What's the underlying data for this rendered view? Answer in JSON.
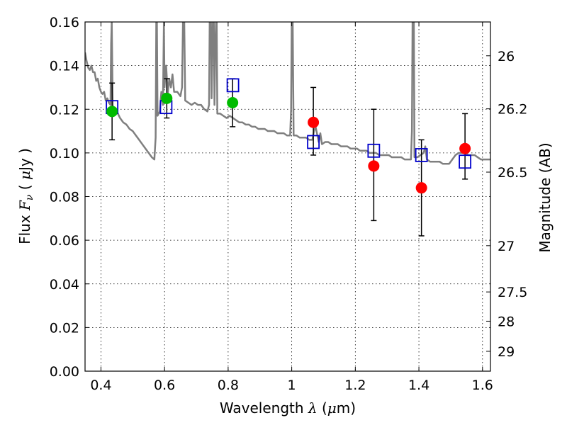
{
  "chart_data": {
    "type": "scatter",
    "title": "",
    "xlabel": {
      "text": "Wavelength",
      "symbol": "λ",
      "unit_prefix": "(",
      "unit_mu": "μ",
      "unit_suffix": "m)"
    },
    "ylabel": {
      "text": "Flux",
      "symbol": "F",
      "subscript": "ν",
      "unit_open": "(",
      "unit_mu": "μ",
      "unit_rest": "Jy",
      "unit_close": ")"
    },
    "y2label": "Magnitude (AB)",
    "xlim": [
      0.35,
      1.625
    ],
    "ylim": [
      0.0,
      0.16
    ],
    "grid": true,
    "x_ticks": [
      "0.4",
      "0.6",
      "0.8",
      "1",
      "1.2",
      "1.4",
      "1.6"
    ],
    "x_tick_values": [
      0.4,
      0.6,
      0.8,
      1.0,
      1.2,
      1.4,
      1.6
    ],
    "y_ticks": [
      "0.00",
      "0.02",
      "0.04",
      "0.06",
      "0.08",
      "0.10",
      "0.12",
      "0.14",
      "0.16"
    ],
    "y_tick_values": [
      0.0,
      0.02,
      0.04,
      0.06,
      0.08,
      0.1,
      0.12,
      0.14,
      0.16
    ],
    "mag_ticks": [
      {
        "label": "26",
        "flux": 0.1445
      },
      {
        "label": "26.2",
        "flux": 0.1202
      },
      {
        "label": "26.5",
        "flux": 0.0912
      },
      {
        "label": "27",
        "flux": 0.0575
      },
      {
        "label": "27.5",
        "flux": 0.0363
      },
      {
        "label": "28",
        "flux": 0.0229
      },
      {
        "label": "29",
        "flux": 0.0091
      }
    ],
    "colors": {
      "model": "#7f7f7f",
      "green": "#00bb00",
      "red": "#ff0000",
      "box": "#0000cc",
      "errorbar": "#000000"
    },
    "series": [
      {
        "kind": "model-spectrum",
        "points": [
          [
            0.35,
            0.146
          ],
          [
            0.355,
            0.142
          ],
          [
            0.36,
            0.139
          ],
          [
            0.365,
            0.138
          ],
          [
            0.37,
            0.14
          ],
          [
            0.375,
            0.137
          ],
          [
            0.38,
            0.137
          ],
          [
            0.385,
            0.133
          ],
          [
            0.39,
            0.134
          ],
          [
            0.395,
            0.13
          ],
          [
            0.4,
            0.128
          ],
          [
            0.405,
            0.127
          ],
          [
            0.41,
            0.128
          ],
          [
            0.415,
            0.124
          ],
          [
            0.42,
            0.125
          ],
          [
            0.425,
            0.123
          ],
          [
            0.43,
            0.122
          ],
          [
            0.432,
            0.15
          ],
          [
            0.434,
            0.16
          ],
          [
            0.437,
            0.122
          ],
          [
            0.44,
            0.12
          ],
          [
            0.45,
            0.119
          ],
          [
            0.46,
            0.116
          ],
          [
            0.47,
            0.114
          ],
          [
            0.48,
            0.113
          ],
          [
            0.49,
            0.111
          ],
          [
            0.5,
            0.11
          ],
          [
            0.51,
            0.108
          ],
          [
            0.52,
            0.106
          ],
          [
            0.53,
            0.104
          ],
          [
            0.54,
            0.102
          ],
          [
            0.55,
            0.1
          ],
          [
            0.56,
            0.098
          ],
          [
            0.568,
            0.097
          ],
          [
            0.572,
            0.107
          ],
          [
            0.574,
            0.16
          ],
          [
            0.576,
            0.16
          ],
          [
            0.578,
            0.117
          ],
          [
            0.585,
            0.119
          ],
          [
            0.59,
            0.128
          ],
          [
            0.595,
            0.122
          ],
          [
            0.598,
            0.16
          ],
          [
            0.6,
            0.13
          ],
          [
            0.605,
            0.14
          ],
          [
            0.61,
            0.127
          ],
          [
            0.615,
            0.134
          ],
          [
            0.62,
            0.13
          ],
          [
            0.625,
            0.136
          ],
          [
            0.63,
            0.128
          ],
          [
            0.64,
            0.128
          ],
          [
            0.65,
            0.126
          ],
          [
            0.655,
            0.13
          ],
          [
            0.658,
            0.16
          ],
          [
            0.662,
            0.16
          ],
          [
            0.665,
            0.124
          ],
          [
            0.675,
            0.123
          ],
          [
            0.685,
            0.122
          ],
          [
            0.695,
            0.123
          ],
          [
            0.705,
            0.122
          ],
          [
            0.715,
            0.122
          ],
          [
            0.725,
            0.12
          ],
          [
            0.735,
            0.119
          ],
          [
            0.74,
            0.122
          ],
          [
            0.742,
            0.16
          ],
          [
            0.746,
            0.16
          ],
          [
            0.748,
            0.125
          ],
          [
            0.752,
            0.16
          ],
          [
            0.755,
            0.16
          ],
          [
            0.757,
            0.122
          ],
          [
            0.76,
            0.15
          ],
          [
            0.762,
            0.16
          ],
          [
            0.764,
            0.16
          ],
          [
            0.766,
            0.118
          ],
          [
            0.775,
            0.118
          ],
          [
            0.785,
            0.117
          ],
          [
            0.795,
            0.116
          ],
          [
            0.805,
            0.117
          ],
          [
            0.815,
            0.116
          ],
          [
            0.825,
            0.115
          ],
          [
            0.835,
            0.114
          ],
          [
            0.845,
            0.114
          ],
          [
            0.855,
            0.113
          ],
          [
            0.865,
            0.113
          ],
          [
            0.875,
            0.112
          ],
          [
            0.885,
            0.112
          ],
          [
            0.895,
            0.111
          ],
          [
            0.905,
            0.111
          ],
          [
            0.915,
            0.111
          ],
          [
            0.925,
            0.11
          ],
          [
            0.935,
            0.11
          ],
          [
            0.945,
            0.11
          ],
          [
            0.955,
            0.109
          ],
          [
            0.965,
            0.109
          ],
          [
            0.975,
            0.109
          ],
          [
            0.985,
            0.108
          ],
          [
            0.995,
            0.108
          ],
          [
            0.998,
            0.12
          ],
          [
            1.0,
            0.16
          ],
          [
            1.003,
            0.16
          ],
          [
            1.006,
            0.108
          ],
          [
            1.015,
            0.108
          ],
          [
            1.025,
            0.107
          ],
          [
            1.035,
            0.107
          ],
          [
            1.045,
            0.107
          ],
          [
            1.055,
            0.106
          ],
          [
            1.065,
            0.106
          ],
          [
            1.07,
            0.11
          ],
          [
            1.075,
            0.112
          ],
          [
            1.085,
            0.105
          ],
          [
            1.09,
            0.109
          ],
          [
            1.095,
            0.104
          ],
          [
            1.105,
            0.105
          ],
          [
            1.115,
            0.105
          ],
          [
            1.125,
            0.104
          ],
          [
            1.135,
            0.104
          ],
          [
            1.145,
            0.104
          ],
          [
            1.155,
            0.103
          ],
          [
            1.165,
            0.103
          ],
          [
            1.175,
            0.103
          ],
          [
            1.185,
            0.102
          ],
          [
            1.195,
            0.102
          ],
          [
            1.205,
            0.102
          ],
          [
            1.215,
            0.101
          ],
          [
            1.225,
            0.101
          ],
          [
            1.235,
            0.101
          ],
          [
            1.245,
            0.1
          ],
          [
            1.255,
            0.1
          ],
          [
            1.265,
            0.1
          ],
          [
            1.275,
            0.099
          ],
          [
            1.285,
            0.099
          ],
          [
            1.295,
            0.099
          ],
          [
            1.305,
            0.099
          ],
          [
            1.315,
            0.098
          ],
          [
            1.325,
            0.098
          ],
          [
            1.335,
            0.098
          ],
          [
            1.345,
            0.098
          ],
          [
            1.355,
            0.097
          ],
          [
            1.365,
            0.097
          ],
          [
            1.375,
            0.097
          ],
          [
            1.378,
            0.11
          ],
          [
            1.38,
            0.16
          ],
          [
            1.384,
            0.16
          ],
          [
            1.386,
            0.098
          ],
          [
            1.395,
            0.098
          ],
          [
            1.405,
            0.099
          ],
          [
            1.415,
            0.1
          ],
          [
            1.42,
            0.103
          ],
          [
            1.425,
            0.097
          ],
          [
            1.435,
            0.096
          ],
          [
            1.445,
            0.096
          ],
          [
            1.455,
            0.096
          ],
          [
            1.465,
            0.096
          ],
          [
            1.475,
            0.095
          ],
          [
            1.485,
            0.095
          ],
          [
            1.495,
            0.095
          ],
          [
            1.505,
            0.097
          ],
          [
            1.515,
            0.099
          ],
          [
            1.525,
            0.1
          ],
          [
            1.535,
            0.1
          ],
          [
            1.545,
            0.1
          ],
          [
            1.555,
            0.099
          ],
          [
            1.565,
            0.099
          ],
          [
            1.575,
            0.099
          ],
          [
            1.585,
            0.098
          ],
          [
            1.595,
            0.097
          ],
          [
            1.605,
            0.097
          ],
          [
            1.615,
            0.097
          ],
          [
            1.625,
            0.097
          ]
        ]
      },
      {
        "kind": "green-points",
        "points": [
          [
            0.435,
            0.119
          ],
          [
            0.607,
            0.125
          ],
          [
            0.814,
            0.123
          ]
        ]
      },
      {
        "kind": "red-points",
        "points": [
          [
            1.068,
            0.114
          ],
          [
            1.258,
            0.094
          ],
          [
            1.408,
            0.084
          ],
          [
            1.545,
            0.102
          ]
        ]
      },
      {
        "kind": "box-points",
        "points": [
          [
            0.435,
            0.121
          ],
          [
            0.605,
            0.121
          ],
          [
            0.815,
            0.131
          ],
          [
            1.068,
            0.105
          ],
          [
            1.258,
            0.101
          ],
          [
            1.408,
            0.099
          ],
          [
            1.545,
            0.096
          ]
        ]
      },
      {
        "kind": "error-bars",
        "bars": [
          [
            0.435,
            0.106,
            0.132
          ],
          [
            0.607,
            0.116,
            0.134
          ],
          [
            0.814,
            0.112,
            0.134
          ],
          [
            1.068,
            0.099,
            0.13
          ],
          [
            1.258,
            0.069,
            0.12
          ],
          [
            1.408,
            0.062,
            0.106
          ],
          [
            1.545,
            0.088,
            0.118
          ]
        ]
      }
    ]
  }
}
